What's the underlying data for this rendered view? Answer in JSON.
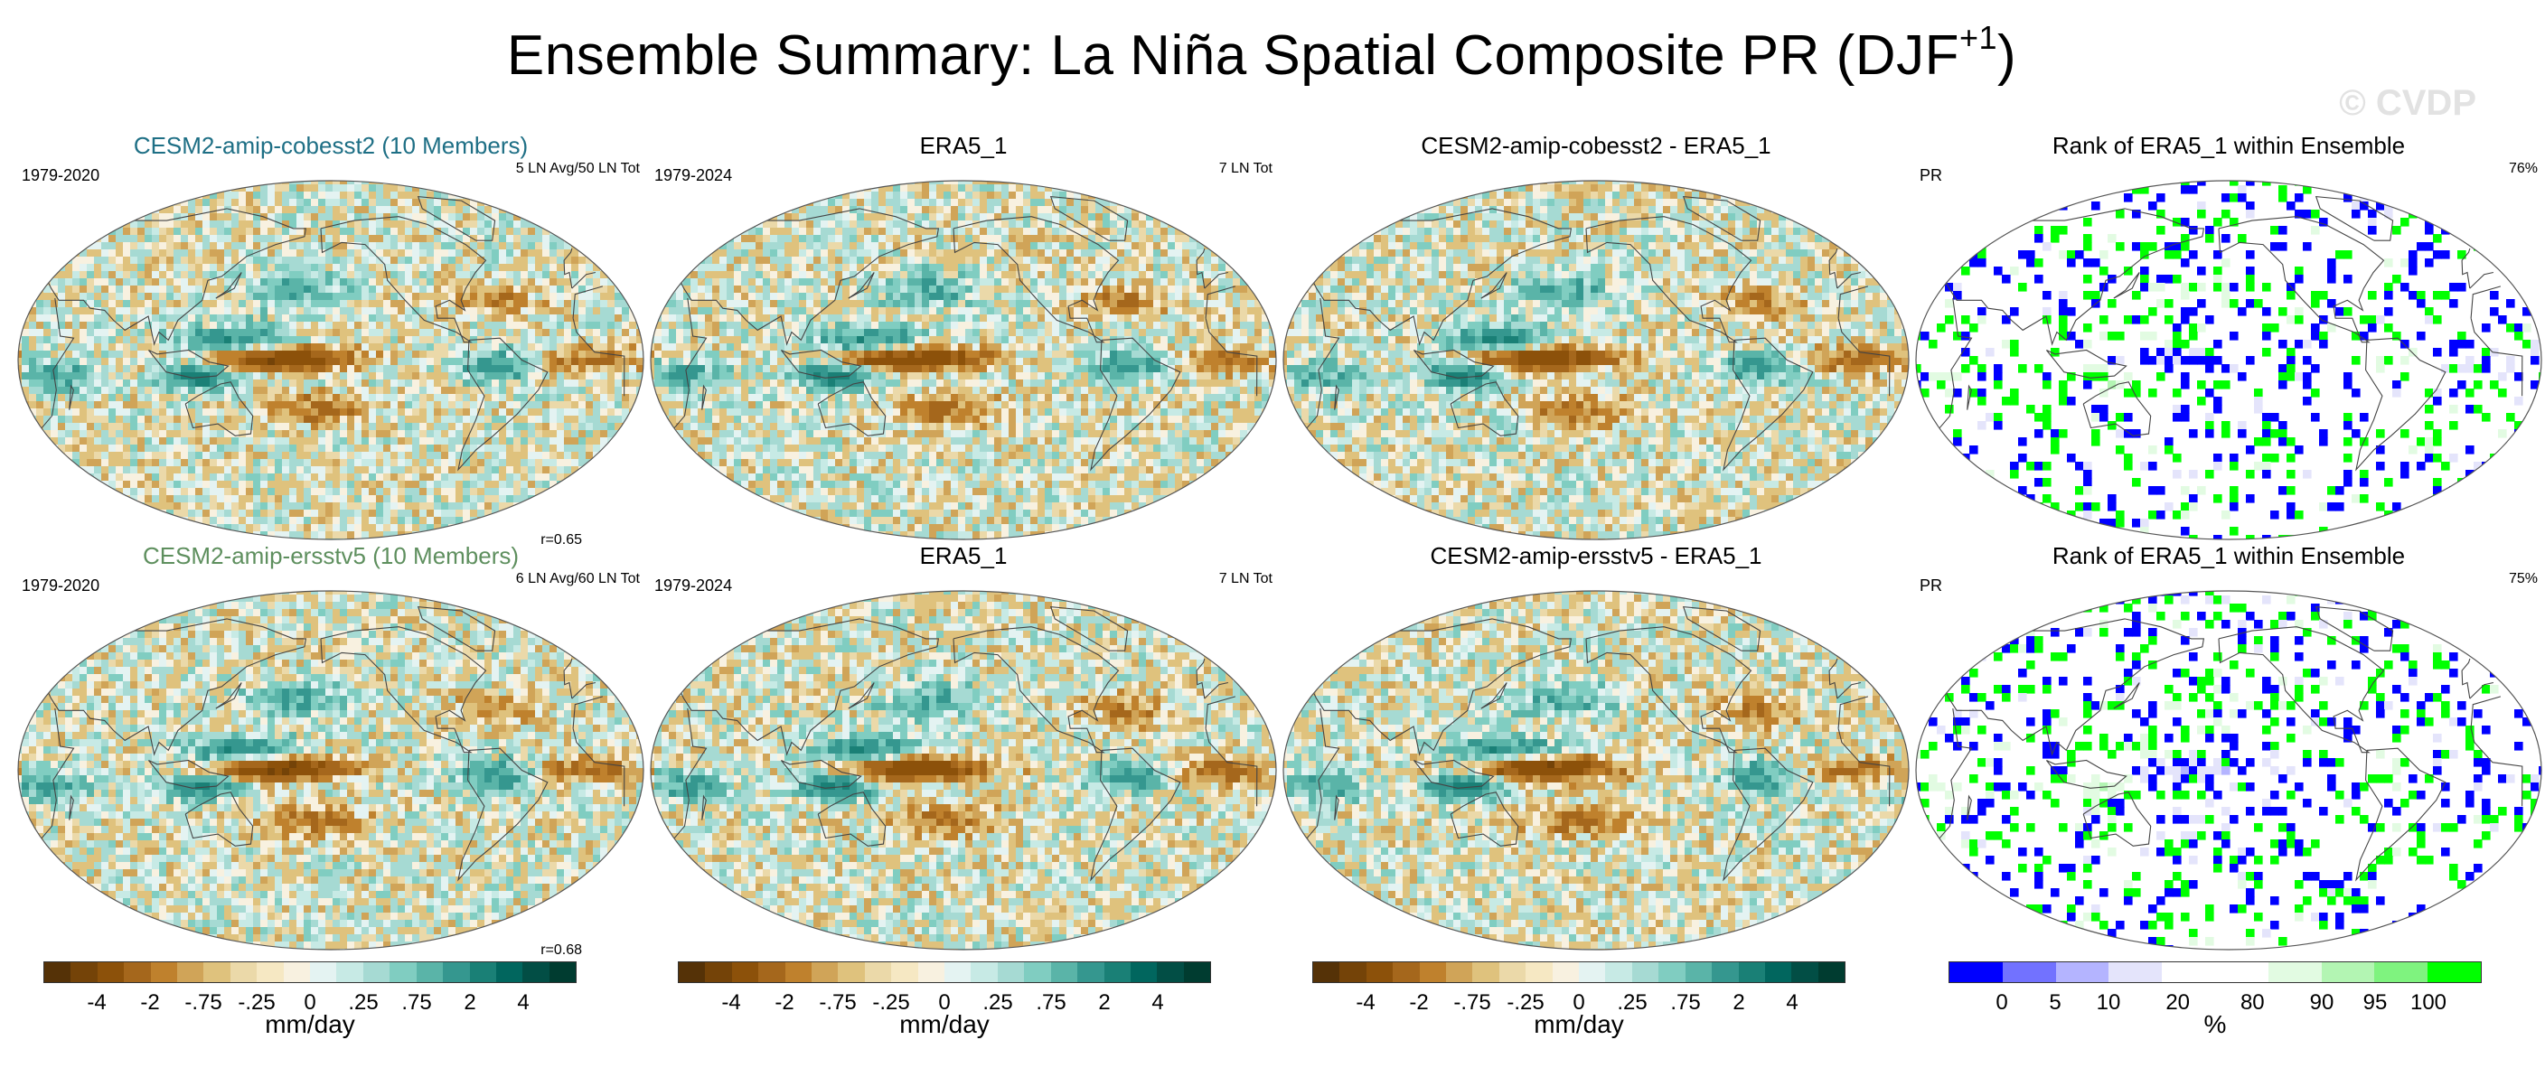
{
  "title": "Ensemble Summary: La Niña Spatial Composite PR (DJF",
  "title_sup": "+1",
  "title_end": ")",
  "watermark": "© CVDP",
  "colors": {
    "brown_scale": [
      "#553207",
      "#744308",
      "#8c510a",
      "#a5671c",
      "#bf812d",
      "#d0a458",
      "#dfc27d",
      "#ebd9a9",
      "#f6e8c3",
      "#f8f1e0"
    ],
    "teal_scale": [
      "#e4f3f2",
      "#c7eae5",
      "#a6dad3",
      "#80cdc1",
      "#5ab4a8",
      "#35978f",
      "#1a8076",
      "#01665e",
      "#024e45",
      "#003c30"
    ],
    "rank": {
      "blue": "#0000ff",
      "mid_blue": "#7272ff",
      "light_blue": "#b4b4ff",
      "lighter_blue": "#e4e4fb",
      "white": "#ffffff",
      "pale_green": "#e2fbe2",
      "light_green": "#b3f5b3",
      "mid_green": "#7ff37f",
      "green": "#00ff00"
    },
    "coast": "#444444",
    "land": "#f3f0e9"
  },
  "rows": [
    {
      "panels": [
        {
          "title": "CESM2-amip-cobesst2 (10 Members)",
          "title_color": "#1e6f85",
          "left": "1979-2020",
          "right": "5 LN Avg/50 LN Tot",
          "corr": "r=0.65",
          "kind": "field",
          "seed": 1
        },
        {
          "title": "ERA5_1",
          "title_color": "#000000",
          "left": "1979-2024",
          "right": "7 LN Tot",
          "corr": "",
          "kind": "field",
          "seed": 2
        },
        {
          "title": "CESM2-amip-cobesst2 - ERA5_1",
          "title_color": "#000000",
          "left": "",
          "right": "",
          "corr": "",
          "kind": "field",
          "seed": 3
        },
        {
          "title": "Rank of ERA5_1 within Ensemble",
          "title_color": "#000000",
          "left": "PR",
          "right": "76%",
          "corr": "",
          "kind": "rank",
          "seed": 4
        }
      ]
    },
    {
      "panels": [
        {
          "title": "CESM2-amip-ersstv5 (10 Members)",
          "title_color": "#5e8f5e",
          "left": "1979-2020",
          "right": "6 LN Avg/60 LN Tot",
          "corr": "r=0.68",
          "kind": "field",
          "seed": 5
        },
        {
          "title": "ERA5_1",
          "title_color": "#000000",
          "left": "1979-2024",
          "right": "7 LN Tot",
          "corr": "",
          "kind": "field",
          "seed": 6
        },
        {
          "title": "CESM2-amip-ersstv5 - ERA5_1",
          "title_color": "#000000",
          "left": "",
          "right": "",
          "corr": "",
          "kind": "field",
          "seed": 7
        },
        {
          "title": "Rank of ERA5_1 within Ensemble",
          "title_color": "#000000",
          "left": "PR",
          "right": "75%",
          "corr": "",
          "kind": "rank",
          "seed": 8
        }
      ]
    }
  ],
  "colorbars": [
    {
      "type": "diverging",
      "ticks": [
        "-4",
        "-2",
        "-.75",
        "-.25",
        "0",
        ".25",
        ".75",
        "2",
        "4"
      ],
      "unit": "mm/day"
    },
    {
      "type": "diverging",
      "ticks": [
        "-4",
        "-2",
        "-.75",
        "-.25",
        "0",
        ".25",
        ".75",
        "2",
        "4"
      ],
      "unit": "mm/day"
    },
    {
      "type": "diverging",
      "ticks": [
        "-4",
        "-2",
        "-.75",
        "-.25",
        "0",
        ".25",
        ".75",
        "2",
        "4"
      ],
      "unit": "mm/day"
    },
    {
      "type": "rank",
      "ticks": [
        "0",
        "5",
        "10",
        "20",
        "80",
        "90",
        "95",
        "100"
      ],
      "unit": "%"
    }
  ]
}
